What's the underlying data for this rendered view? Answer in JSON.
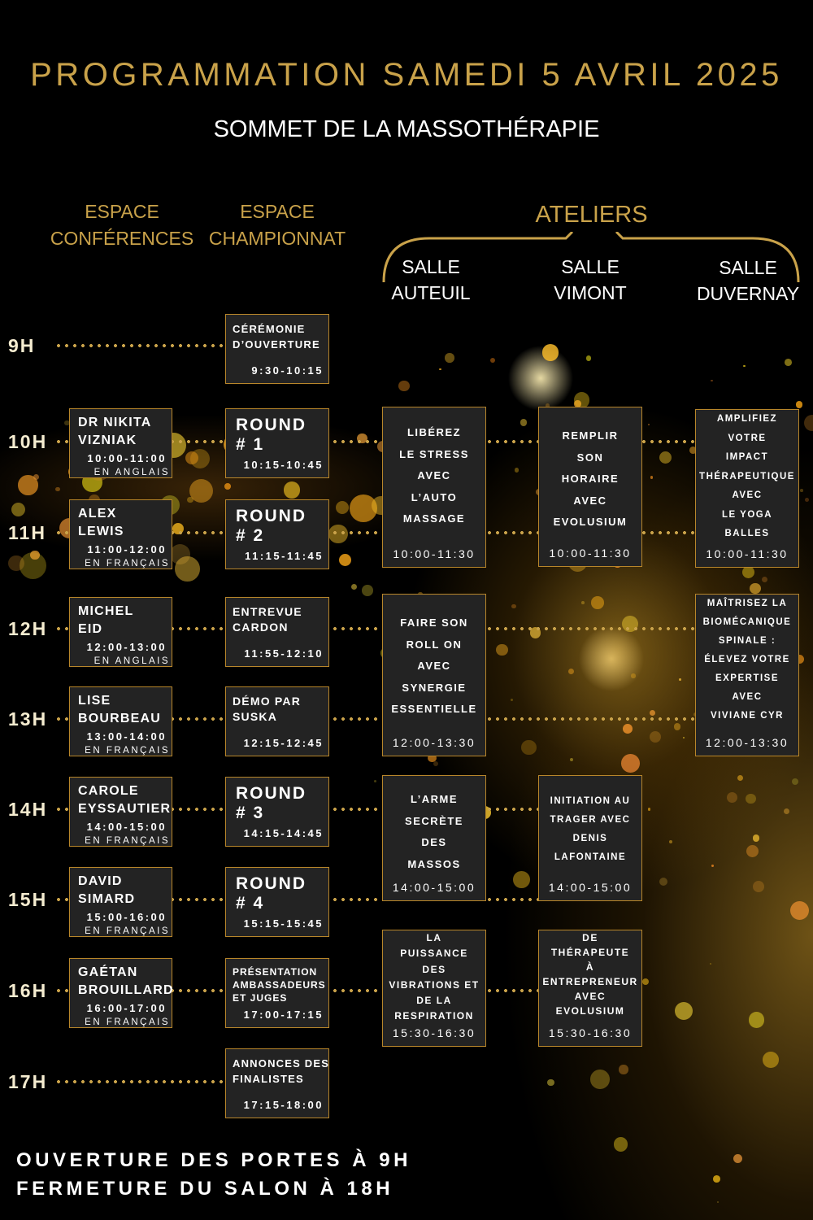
{
  "header": {
    "title": "PROGRAMMATION SAMEDI 5 AVRIL 2025",
    "subtitle": "SOMMET DE LA MASSOTHÉRAPIE"
  },
  "columns": {
    "conferences": "ESPACE\nCONFÉRENCES",
    "championnat": "ESPACE\nCHAMPIONNAT",
    "ateliers": "ATELIERS",
    "auteuil": "SALLE\nAUTEUIL",
    "vimont": "SALLE\nVIMONT",
    "duvernay": "SALLE\nDUVERNAY"
  },
  "hours": [
    "9H",
    "10H",
    "11H",
    "12H",
    "13H",
    "14H",
    "15H",
    "16H",
    "17H"
  ],
  "conferences": [
    {
      "title": "DR NIKITA\nVIZNIAK",
      "time": "10:00-11:00",
      "lang": "EN ANGLAIS"
    },
    {
      "title": "ALEX\nLEWIS",
      "time": "11:00-12:00",
      "lang": "EN FRANÇAIS"
    },
    {
      "title": "MICHEL\nEID",
      "time": "12:00-13:00",
      "lang": "EN ANGLAIS"
    },
    {
      "title": "LISE\nBOURBEAU",
      "time": "13:00-14:00",
      "lang": "EN FRANÇAIS"
    },
    {
      "title": "CAROLE\nEYSSAUTIER",
      "time": "14:00-15:00",
      "lang": "EN FRANÇAIS"
    },
    {
      "title": "DAVID\nSIMARD",
      "time": "15:00-16:00",
      "lang": "EN FRANÇAIS"
    },
    {
      "title": "GAÉTAN\nBROUILLARD",
      "time": "16:00-17:00",
      "lang": "EN FRANÇAIS"
    }
  ],
  "championnat": [
    {
      "title": "CÉRÉMONIE\nD’OUVERTURE",
      "time": "9:30-10:15"
    },
    {
      "title": "ROUND\n# 1",
      "time": "10:15-10:45"
    },
    {
      "title": "ROUND\n# 2",
      "time": "11:15-11:45"
    },
    {
      "title": "ENTREVUE\nCARDON",
      "time": "11:55-12:10"
    },
    {
      "title": "DÉMO PAR\nSUSKA",
      "time": "12:15-12:45"
    },
    {
      "title": "ROUND\n# 3",
      "time": "14:15-14:45"
    },
    {
      "title": "ROUND\n# 4",
      "time": "15:15-15:45"
    },
    {
      "title": "PRÉSENTATION\nAMBASSADEURS\nET JUGES",
      "time": "17:00-17:15"
    },
    {
      "title": "ANNONCES DES\nFINALISTES",
      "time": "17:15-18:00"
    }
  ],
  "auteuil": [
    {
      "title": "LIBÉREZ\nLE STRESS\nAVEC\nL’AUTO\nMASSAGE",
      "time": "10:00-11:30"
    },
    {
      "title": "FAIRE SON\nROLL ON\nAVEC\nSYNERGIE\nESSENTIELLE",
      "time": "12:00-13:30"
    },
    {
      "title": "L’ARME\nSECRÈTE\nDES\nMASSOS",
      "time": "14:00-15:00"
    },
    {
      "title": "LA\nPUISSANCE\nDES\nVIBRATIONS ET\nDE LA\nRESPIRATION",
      "time": "15:30-16:30"
    }
  ],
  "vimont": [
    {
      "title": "REMPLIR\nSON\nHORAIRE\nAVEC\nEVOLUSIUM",
      "time": "10:00-11:30"
    },
    {
      "title": "INITIATION AU\nTRAGER AVEC\nDENIS\nLAFONTAINE",
      "time": "14:00-15:00"
    },
    {
      "title": "DE\nTHÉRAPEUTE\nÀ\nENTREPRENEUR\nAVEC\nEVOLUSIUM",
      "time": "15:30-16:30"
    }
  ],
  "duvernay": [
    {
      "title": "AMPLIFIEZ\nVOTRE\nIMPACT\nTHÉRAPEUTIQUE\nAVEC\nLE YOGA\nBALLES",
      "time": "10:00-11:30"
    },
    {
      "title": "MAÎTRISEZ LA\nBIOMÉCANIQUE\nSPINALE :\nÉLEVEZ VOTRE\nEXPERTISE\nAVEC\nVIVIANE CYR",
      "time": "12:00-13:30"
    }
  ],
  "footer": {
    "line1": "OUVERTURE DES PORTES À 9H",
    "line2": "FERMETURE DU SALON À 18H"
  },
  "colors": {
    "gold": "#c9a24a",
    "box": "#232323",
    "border": "#b8862a"
  }
}
